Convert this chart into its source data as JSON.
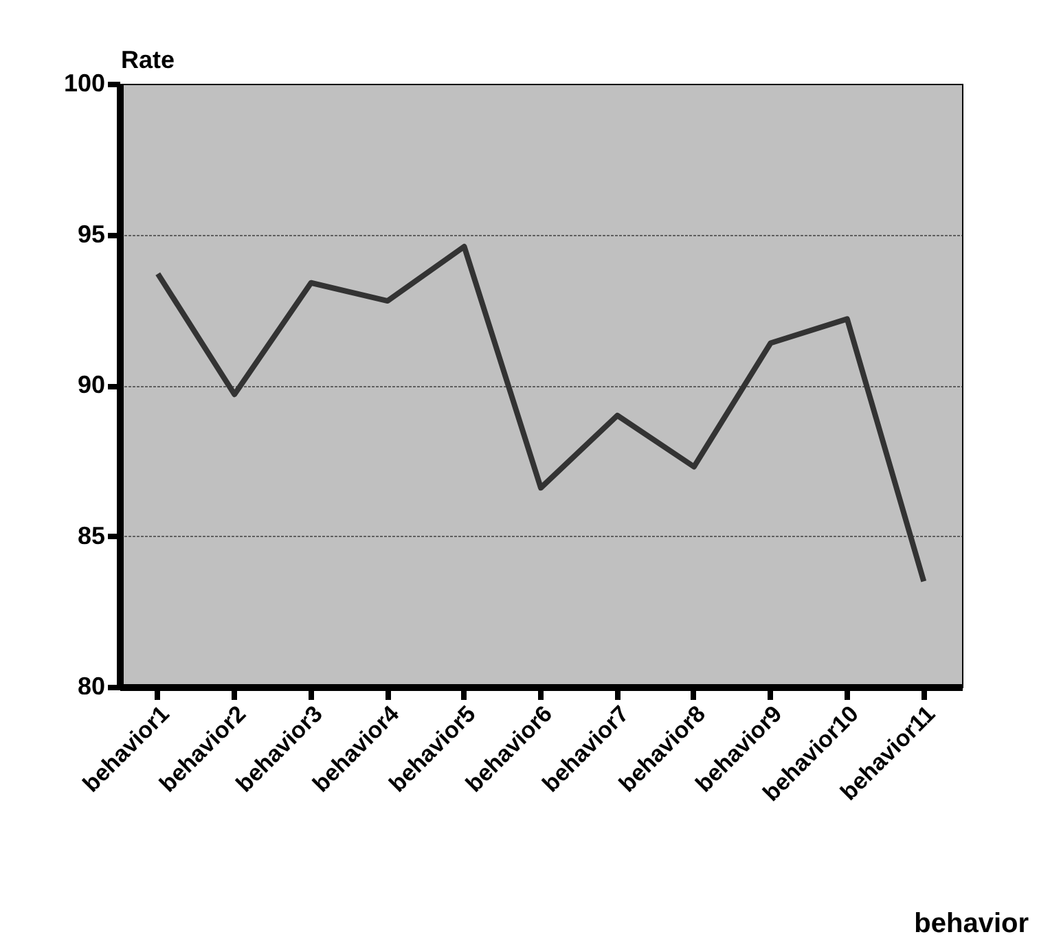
{
  "chart_data": {
    "type": "line",
    "xlabel": "behavior",
    "ylabel": "Rate",
    "categories": [
      "behavior1",
      "behavior2",
      "behavior3",
      "behavior4",
      "behavior5",
      "behavior6",
      "behavior7",
      "behavior8",
      "behavior9",
      "behavior10",
      "behavior11"
    ],
    "series": [
      {
        "color": "#333333",
        "values": [
          93.7,
          89.7,
          93.4,
          92.8,
          94.6,
          86.6,
          89.0,
          87.3,
          91.4,
          92.2,
          83.5
        ]
      }
    ],
    "ylim": [
      80,
      100
    ],
    "yticks": [
      80,
      85,
      90,
      95,
      100
    ],
    "grid": "y",
    "legend": false,
    "marker": "none",
    "line_style": "solid"
  }
}
